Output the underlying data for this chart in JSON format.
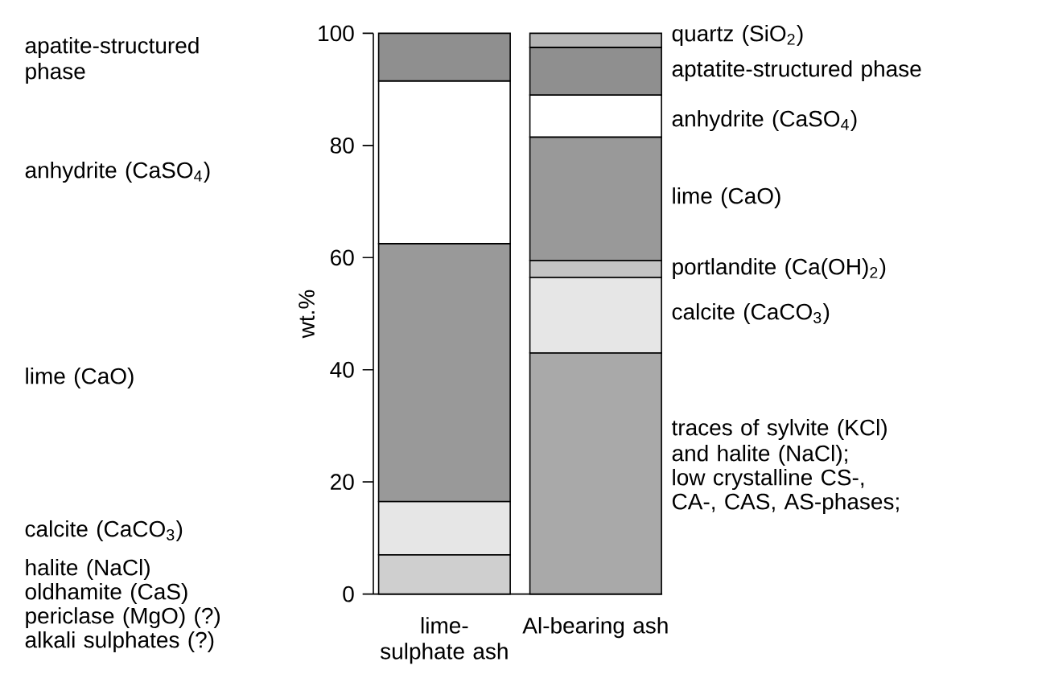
{
  "chart_data": {
    "type": "bar",
    "stacked": true,
    "ylabel": "wt.%",
    "categories": [
      "lime-sulphate ash",
      "Al-bearing ash"
    ],
    "ylim": [
      0,
      100
    ],
    "yticks": [
      0,
      20,
      40,
      60,
      80,
      100
    ],
    "series": [
      {
        "colors": [
          "#cfcfcf",
          "#a9a9a9"
        ],
        "values": [
          7,
          43
        ]
      },
      {
        "color": "#e6e6e6",
        "values": [
          9.5,
          13.5
        ]
      },
      {
        "color": "#c4c4c4",
        "values": [
          null,
          3
        ]
      },
      {
        "color": "#999999",
        "values": [
          46,
          22
        ]
      },
      {
        "color": "#ffffff",
        "values": [
          29,
          7.5
        ]
      },
      {
        "color": "#8f8f8f",
        "values": [
          8.5,
          8.5
        ]
      },
      {
        "color": "#b5b5b5",
        "values": [
          null,
          2.5
        ]
      }
    ],
    "annotations": [
      "apatite-structured phase",
      "anhydrite (CaSO$_{4}$)",
      "lime (CaO)",
      "calcite (CaCO$_{3}$)",
      "halite (NaCl)",
      "oldhamite (CaS)",
      "periclase (MgO) (?)",
      "alkali sulphates (?)",
      "quartz (SiO$_{2}$)",
      "aptatite-structured phase",
      "anhydrite (CaSO$_{4}$)",
      "lime (CaO)",
      "portlandite (Ca(OH)$_{2}$)",
      "calcite (CaCO$_{3}$)",
      "traces of sylvite (KCl)",
      "and halite (NaCl);",
      "low crystalline CS-,",
      "CA-, CAS, AS-phases;"
    ]
  }
}
